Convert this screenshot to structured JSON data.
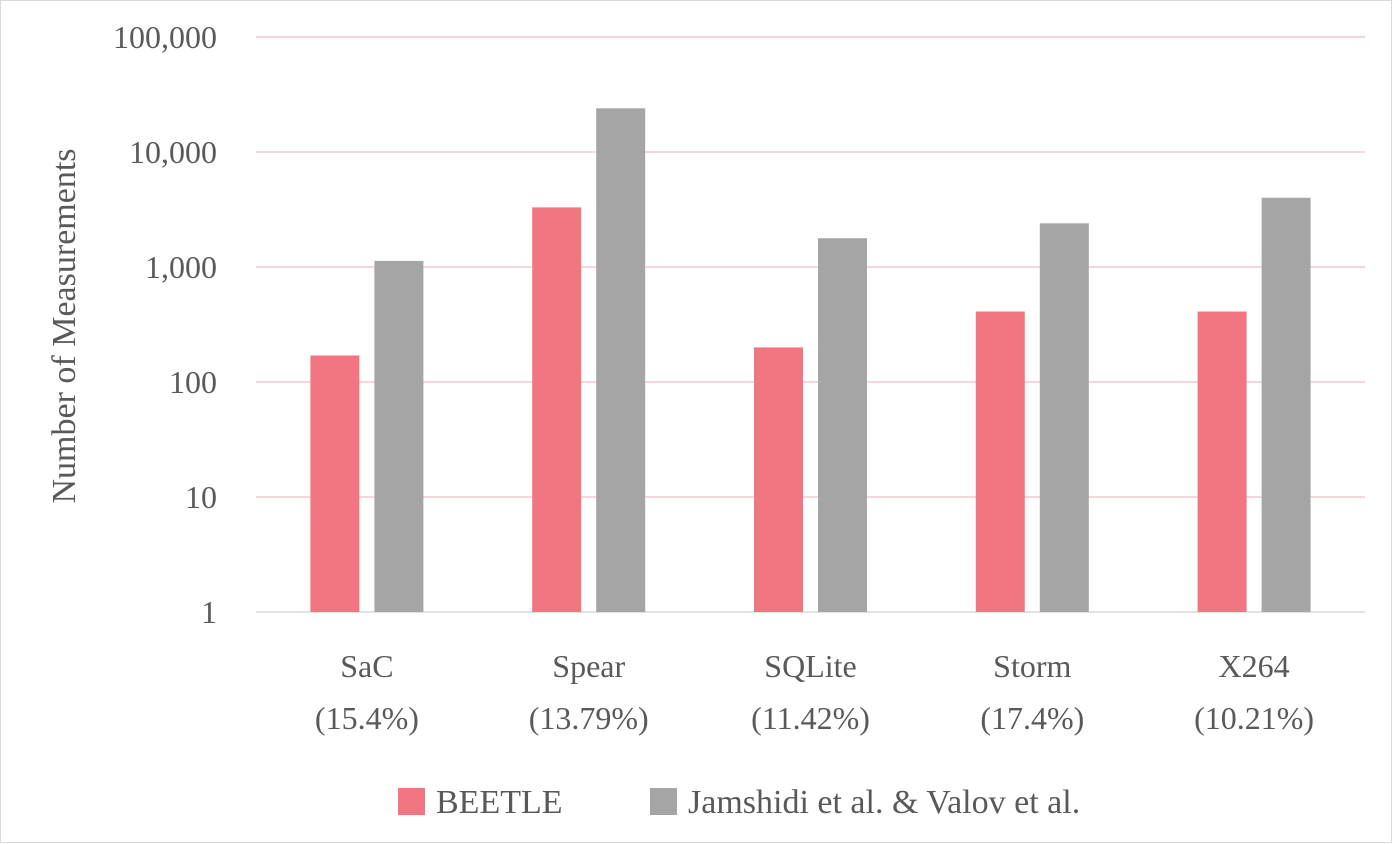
{
  "chart_data": {
    "type": "bar",
    "ylabel": "Number of Measurements",
    "yscale": "log",
    "ylim": [
      1,
      100000
    ],
    "yticks": [
      {
        "value": 1,
        "label": "1"
      },
      {
        "value": 10,
        "label": "10"
      },
      {
        "value": 100,
        "label": "100"
      },
      {
        "value": 1000,
        "label": "1,000"
      },
      {
        "value": 10000,
        "label": "10,000"
      },
      {
        "value": 100000,
        "label": "100,000"
      }
    ],
    "categories": [
      {
        "name": "SaC",
        "sub": "(15.4%)"
      },
      {
        "name": "Spear",
        "sub": "(13.79%)"
      },
      {
        "name": "SQLite",
        "sub": "(11.42%)"
      },
      {
        "name": "Storm",
        "sub": "(17.4%)"
      },
      {
        "name": "X264",
        "sub": "(10.21%)"
      }
    ],
    "series": [
      {
        "name": "BEETLE",
        "color": "#f27681",
        "values": [
          170,
          3300,
          200,
          410,
          410
        ]
      },
      {
        "name": "Jamshidi et al. & Valov et al.",
        "color": "#a5a5a5",
        "values": [
          1130,
          24000,
          1780,
          2400,
          4000
        ]
      }
    ],
    "grid": true,
    "gridcolor": "#f0c9cf",
    "legend": "bottom"
  }
}
